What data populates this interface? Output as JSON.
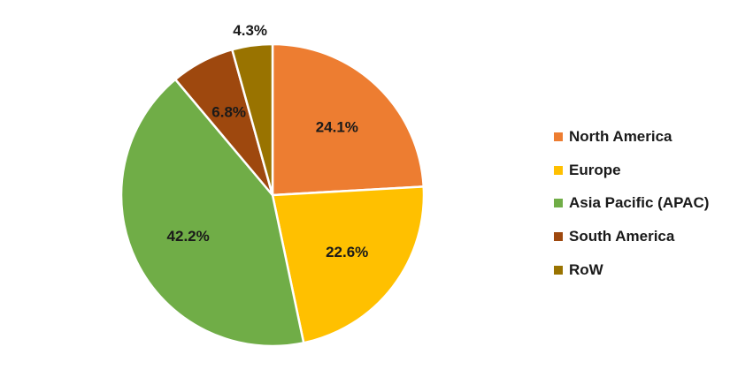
{
  "chart_data": {
    "type": "pie",
    "title": "",
    "start_angle_deg": 0,
    "direction": "clockwise",
    "slices": [
      {
        "name": "North America",
        "value": 24.1,
        "label": "24.1%",
        "color": "#ED7D31"
      },
      {
        "name": "Europe",
        "value": 22.6,
        "label": "22.6%",
        "color": "#FFC000"
      },
      {
        "name": "Asia Pacific (APAC)",
        "value": 42.2,
        "label": "42.2%",
        "color": "#70AD47"
      },
      {
        "name": "South America",
        "value": 6.8,
        "label": "6.8%",
        "color": "#9E480E"
      },
      {
        "name": "RoW",
        "value": 4.3,
        "label": "4.3%",
        "color": "#997300"
      }
    ],
    "legend_position": "right",
    "slice_border_color": "#ffffff"
  }
}
